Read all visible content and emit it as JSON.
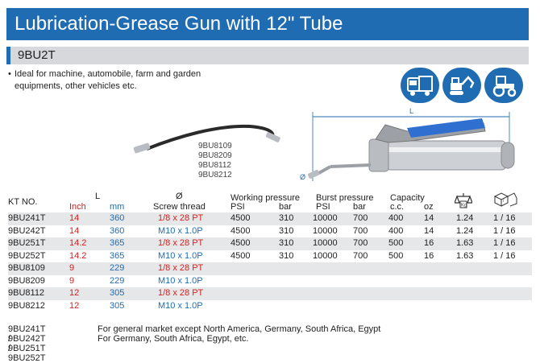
{
  "title": "Lubrication-Grease Gun with 12\" Tube",
  "model": "9BU2T",
  "description": {
    "line1": "Ideal for machine, automobile, farm and garden",
    "line2": "equipments, other vehicles etc."
  },
  "usage_icons": [
    "truck-icon",
    "excavator-icon",
    "tractor-icon"
  ],
  "hose_codes": [
    "9BU8109",
    "9BU8209",
    "9BU8112",
    "9BU8212"
  ],
  "drawing_labels": {
    "length": "L",
    "diameter": "Ø"
  },
  "colors": {
    "brand_blue": "#1f6cb3",
    "red": "#d0221f",
    "row_shade": "#e6e7e9"
  },
  "table": {
    "headers": {
      "kt_no": "KT NO.",
      "l": "L",
      "inch": "Inch",
      "mm": "mm",
      "dia": "Ø",
      "screw": "Screw thread",
      "working": "Working pressure",
      "psi1": "PSI",
      "bar1": "bar",
      "burst": "Burst pressure",
      "psi2": "PSI",
      "bar2": "bar",
      "capacity": "Capacity",
      "cc": "c.c.",
      "oz": "oz",
      "weight_icon": "kg-weight-icon",
      "box_icon": "carton-icon"
    },
    "rows": [
      {
        "kt": "9BU241T",
        "inch": "14",
        "mm": "360",
        "thread": "1/8 x 28 PT",
        "wpsi": "4500",
        "wbar": "310",
        "bpsi": "10000",
        "bbar": "700",
        "cc": "400",
        "oz": "14",
        "kg": "1.24",
        "pack": "1 / 16"
      },
      {
        "kt": "9BU242T",
        "inch": "14",
        "mm": "360",
        "thread": "M10 x 1.0P",
        "wpsi": "4500",
        "wbar": "310",
        "bpsi": "10000",
        "bbar": "700",
        "cc": "400",
        "oz": "14",
        "kg": "1.24",
        "pack": "1 / 16"
      },
      {
        "kt": "9BU251T",
        "inch": "14.2",
        "mm": "365",
        "thread": "1/8 x 28 PT",
        "wpsi": "4500",
        "wbar": "310",
        "bpsi": "10000",
        "bbar": "700",
        "cc": "500",
        "oz": "16",
        "kg": "1.63",
        "pack": "1 / 16"
      },
      {
        "kt": "9BU252T",
        "inch": "14.2",
        "mm": "365",
        "thread": "M10 x 1.0P",
        "wpsi": "4500",
        "wbar": "310",
        "bpsi": "10000",
        "bbar": "700",
        "cc": "500",
        "oz": "16",
        "kg": "1.63",
        "pack": "1 / 16"
      },
      {
        "kt": "9BU8109",
        "inch": "9",
        "mm": "229",
        "thread": "1/8 x 28 PT",
        "wpsi": "",
        "wbar": "",
        "bpsi": "",
        "bbar": "",
        "cc": "",
        "oz": "",
        "kg": "",
        "pack": ""
      },
      {
        "kt": "9BU8209",
        "inch": "9",
        "mm": "229",
        "thread": "M10 x 1.0P",
        "wpsi": "",
        "wbar": "",
        "bpsi": "",
        "bbar": "",
        "cc": "",
        "oz": "",
        "kg": "",
        "pack": ""
      },
      {
        "kt": "9BU8112",
        "inch": "12",
        "mm": "305",
        "thread": "1/8 x 28 PT",
        "wpsi": "",
        "wbar": "",
        "bpsi": "",
        "bbar": "",
        "cc": "",
        "oz": "",
        "kg": "",
        "pack": ""
      },
      {
        "kt": "9BU8212",
        "inch": "12",
        "mm": "305",
        "thread": "M10 x 1.0P",
        "wpsi": "",
        "wbar": "",
        "bpsi": "",
        "bbar": "",
        "cc": "",
        "oz": "",
        "kg": "",
        "pack": ""
      }
    ]
  },
  "footnotes": [
    {
      "models": "9BU241T / 9BU251T",
      "text": "For general market except North America, Germany, South Africa, Egypt"
    },
    {
      "models": "9BU242T / 9BU252T",
      "text": "For Germany, South Africa, Egypt, etc."
    }
  ]
}
